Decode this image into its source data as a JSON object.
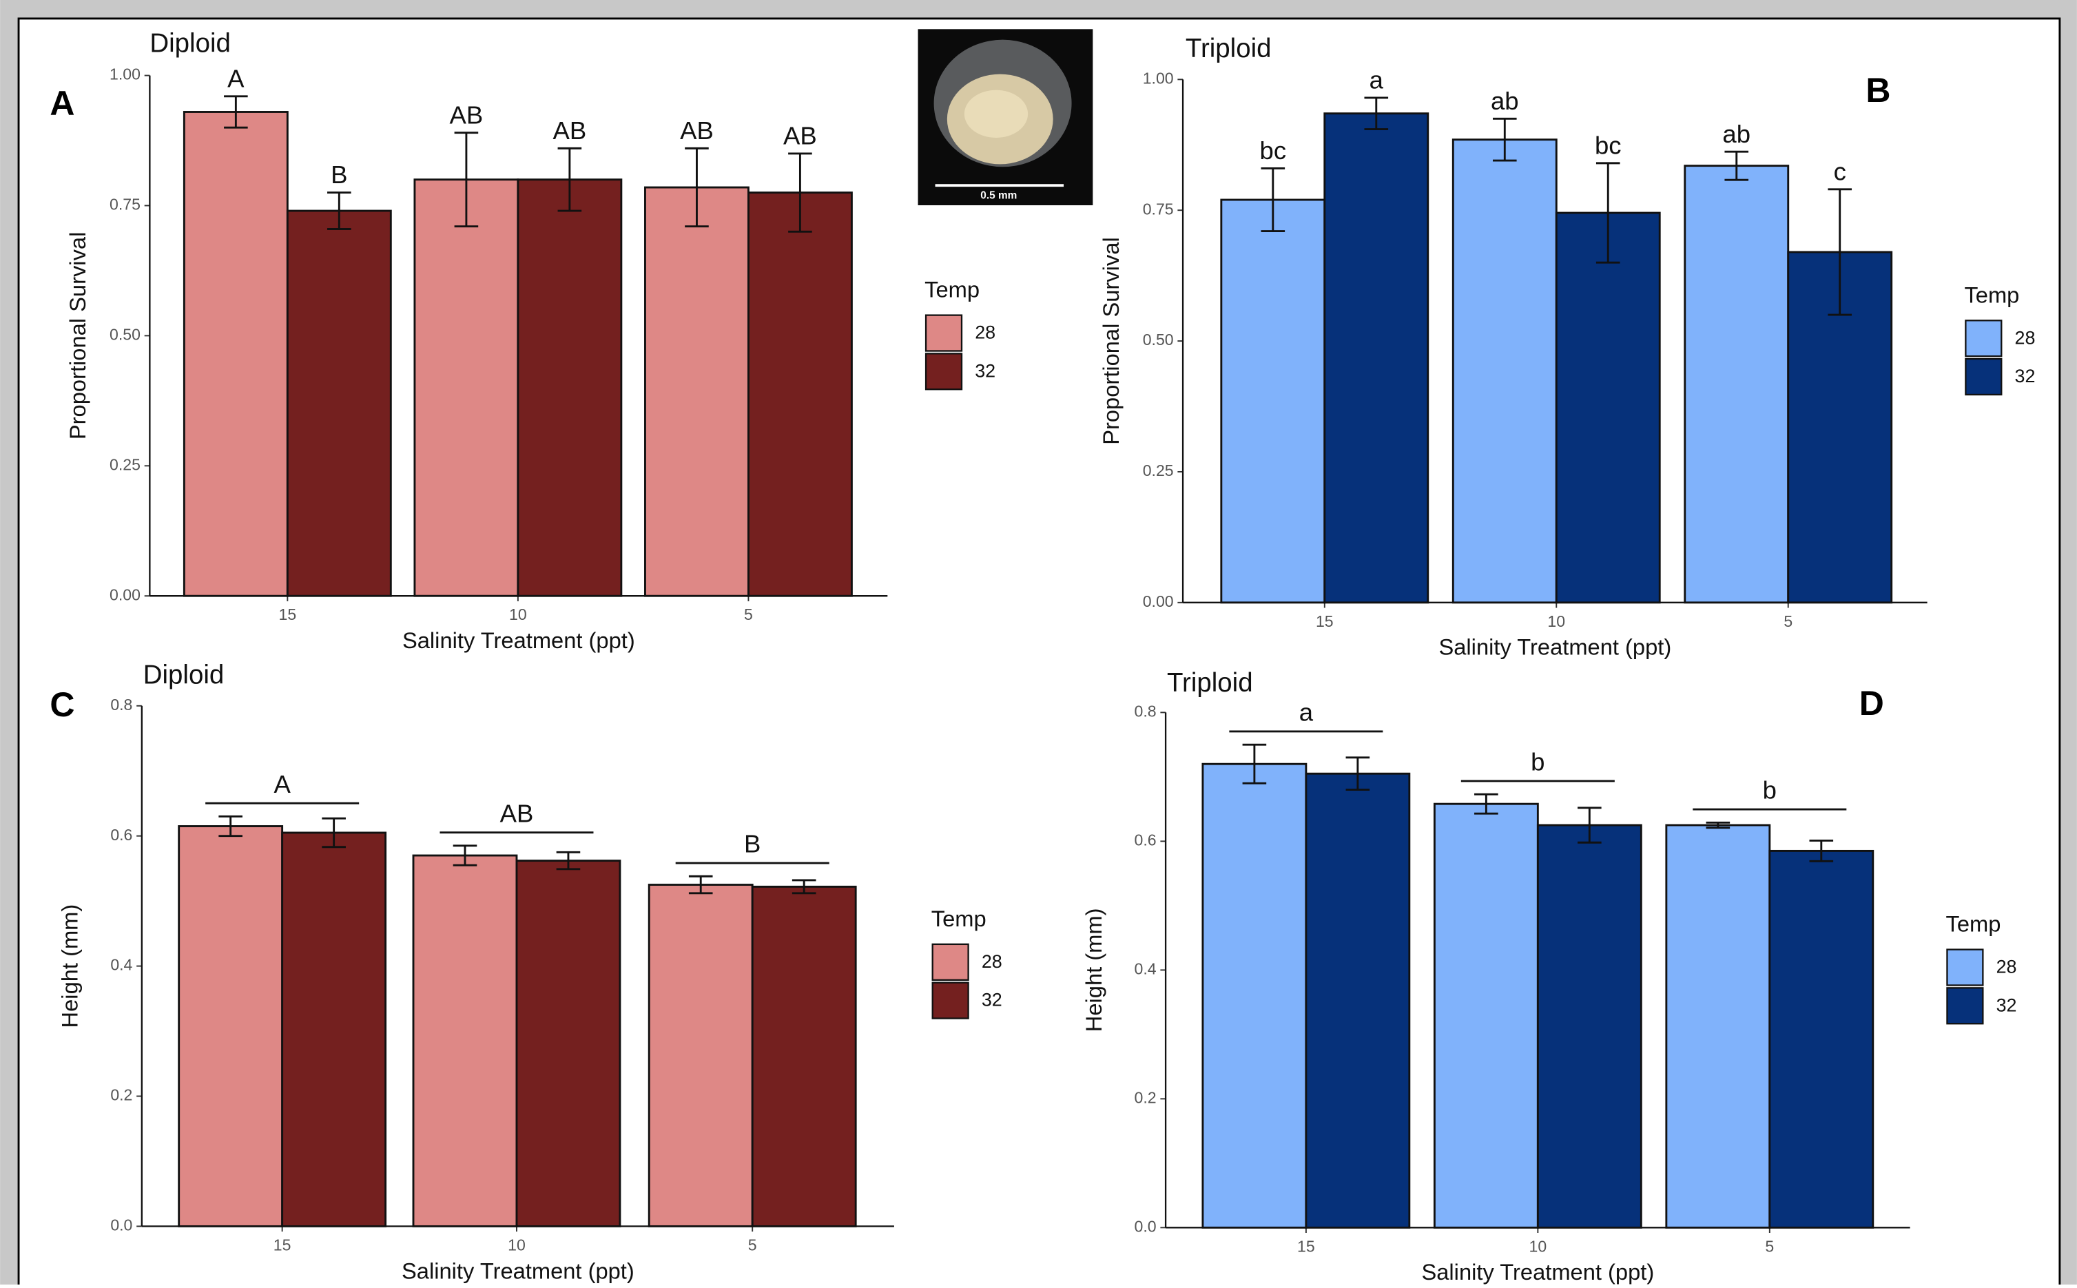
{
  "inset": {
    "scale_label": "0.5 mm"
  },
  "chart_data": [
    {
      "type": "bar",
      "panel": "A",
      "title": "Diploid",
      "xlabel": "Salinity Treatment (ppt)",
      "ylabel": "Proportional Survival",
      "categories": [
        "15",
        "10",
        "5"
      ],
      "legend_title": "Temp",
      "series": [
        {
          "name": "28",
          "color": "#de8886",
          "values": [
            0.93,
            0.8,
            0.785
          ],
          "errors": [
            0.03,
            0.09,
            0.075
          ],
          "letters": [
            "A",
            "AB",
            "AB"
          ]
        },
        {
          "name": "32",
          "color": "#74201f",
          "values": [
            0.74,
            0.8,
            0.775
          ],
          "errors": [
            0.035,
            0.06,
            0.075
          ],
          "letters": [
            "B",
            "AB",
            "AB"
          ]
        }
      ],
      "ylim": [
        0,
        1
      ],
      "yticks": [
        {
          "value": 0,
          "label": "0.00"
        },
        0.25,
        {
          "value": 0.5,
          "label": "0.50"
        },
        0.75,
        {
          "value": 1,
          "label": "1.00"
        }
      ]
    },
    {
      "type": "bar",
      "panel": "B",
      "title": "Triploid",
      "xlabel": "Salinity Treatment (ppt)",
      "ylabel": "Proportional Survival",
      "categories": [
        "15",
        "10",
        "5"
      ],
      "legend_title": "Temp",
      "series": [
        {
          "name": "28",
          "color": "#80b2fb",
          "values": [
            0.77,
            0.885,
            0.835
          ],
          "errors": [
            0.06,
            0.04,
            0.027
          ],
          "letters": [
            "bc",
            "ab",
            "ab"
          ]
        },
        {
          "name": "32",
          "color": "#06317a",
          "values": [
            0.935,
            0.745,
            0.67
          ],
          "errors": [
            0.03,
            0.095,
            0.12
          ],
          "letters": [
            "a",
            "bc",
            "c"
          ]
        }
      ],
      "ylim": [
        0,
        1
      ],
      "yticks": [
        {
          "value": 0,
          "label": "0.00"
        },
        0.25,
        {
          "value": 0.5,
          "label": "0.50"
        },
        0.75,
        {
          "value": 1,
          "label": "1.00"
        }
      ]
    },
    {
      "type": "bar",
      "panel": "C",
      "title": "Diploid",
      "xlabel": "Salinity Treatment (ppt)",
      "ylabel": "Height (mm)",
      "categories": [
        "15",
        "10",
        "5"
      ],
      "legend_title": "Temp",
      "group_letters": [
        "A",
        "AB",
        "B"
      ],
      "series": [
        {
          "name": "28",
          "color": "#de8886",
          "values": [
            0.615,
            0.57,
            0.525
          ],
          "errors": [
            0.015,
            0.015,
            0.013
          ]
        },
        {
          "name": "32",
          "color": "#74201f",
          "values": [
            0.605,
            0.562,
            0.522
          ],
          "errors": [
            0.022,
            0.013,
            0.01
          ]
        }
      ],
      "ylim": [
        0,
        0.8
      ],
      "yticks": [
        {
          "value": 0,
          "label": "0.0"
        },
        0.2,
        0.4,
        0.6,
        0.8
      ]
    },
    {
      "type": "bar",
      "panel": "D",
      "title": "Triploid",
      "xlabel": "Salinity Treatment (ppt)",
      "ylabel": "Height  (mm)",
      "categories": [
        "15",
        "10",
        "5"
      ],
      "legend_title": "Temp",
      "group_letters": [
        "a",
        "b",
        "b"
      ],
      "series": [
        {
          "name": "28",
          "color": "#80b2fb",
          "values": [
            0.72,
            0.658,
            0.625
          ],
          "errors": [
            0.03,
            0.015,
            0.004
          ]
        },
        {
          "name": "32",
          "color": "#06317a",
          "values": [
            0.705,
            0.625,
            0.585
          ],
          "errors": [
            0.025,
            0.027,
            0.016
          ]
        }
      ],
      "ylim": [
        0,
        0.8
      ],
      "yticks": [
        {
          "value": 0,
          "label": "0.0"
        },
        0.2,
        0.4,
        0.6,
        0.8
      ]
    }
  ]
}
